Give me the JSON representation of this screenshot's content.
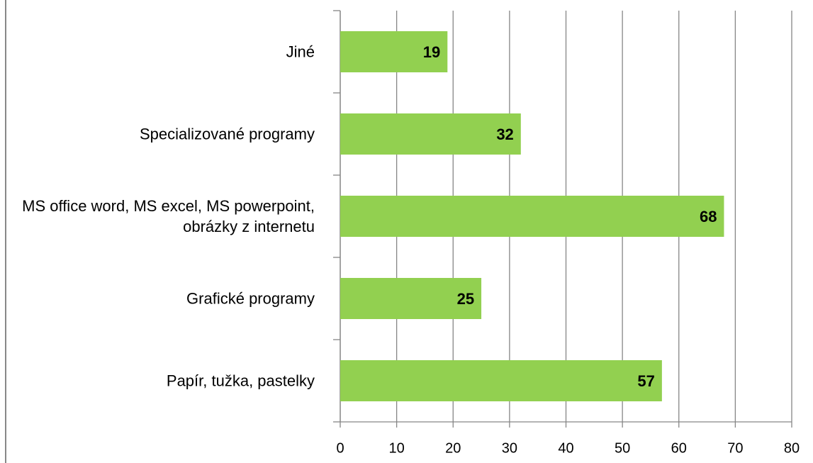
{
  "chart_data": {
    "type": "bar",
    "orientation": "horizontal",
    "categories": [
      "Jiné",
      "Specializované programy",
      "MS office word, MS excel, MS powerpoint, obrázky z internetu",
      "Grafické programy",
      "Papír, tužka, pastelky"
    ],
    "values": [
      19,
      32,
      68,
      25,
      57
    ],
    "color": "#92d050",
    "xlim": [
      0,
      80
    ],
    "xticks": [
      0,
      10,
      20,
      30,
      40,
      50,
      60,
      70,
      80
    ],
    "grid": true
  }
}
